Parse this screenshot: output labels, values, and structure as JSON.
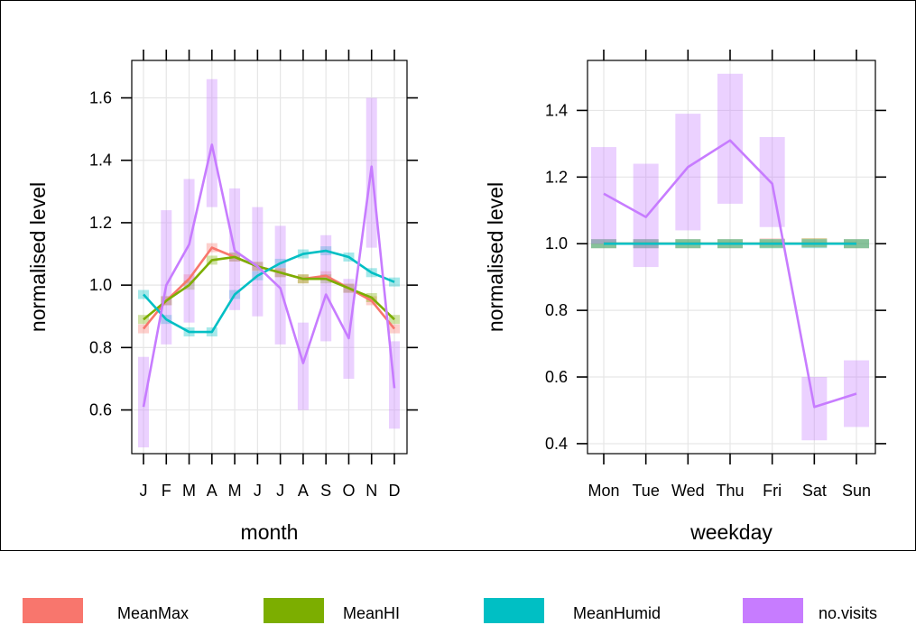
{
  "chart_data": [
    {
      "type": "line",
      "xlabel": "month",
      "ylabel": "normalised level",
      "categories": [
        "J",
        "F",
        "M",
        "A",
        "M",
        "J",
        "J",
        "A",
        "S",
        "O",
        "N",
        "D"
      ],
      "ylim": [
        0.46,
        1.72
      ],
      "yticks": [
        0.6,
        0.8,
        1.0,
        1.2,
        1.4,
        1.6
      ],
      "ytick_labels": [
        "0.6",
        "0.8",
        "1.0",
        "1.2",
        "1.4",
        "1.6"
      ],
      "grid": true,
      "series": [
        {
          "name": "MeanMax",
          "color": "#F8766D",
          "values": [
            0.86,
            0.95,
            1.02,
            1.12,
            1.09,
            1.06,
            1.04,
            1.02,
            1.03,
            0.99,
            0.95,
            0.86
          ],
          "lower": [
            0.85,
            0.94,
            1.01,
            1.11,
            1.08,
            1.05,
            1.03,
            1.01,
            1.02,
            0.98,
            0.94,
            0.85
          ],
          "upper": [
            0.87,
            0.96,
            1.03,
            1.13,
            1.1,
            1.07,
            1.05,
            1.03,
            1.04,
            1.0,
            0.96,
            0.87
          ]
        },
        {
          "name": "MeanHI",
          "color": "#7CAE00",
          "values": [
            0.89,
            0.95,
            1.0,
            1.08,
            1.09,
            1.06,
            1.04,
            1.02,
            1.02,
            0.99,
            0.96,
            0.89
          ],
          "lower": [
            0.88,
            0.94,
            0.99,
            1.07,
            1.08,
            1.05,
            1.03,
            1.01,
            1.01,
            0.98,
            0.95,
            0.88
          ],
          "upper": [
            0.9,
            0.96,
            1.01,
            1.09,
            1.1,
            1.07,
            1.05,
            1.03,
            1.03,
            1.0,
            0.97,
            0.9
          ]
        },
        {
          "name": "MeanHumid",
          "color": "#00BFC4",
          "values": [
            0.97,
            0.89,
            0.85,
            0.85,
            0.97,
            1.03,
            1.07,
            1.1,
            1.11,
            1.09,
            1.04,
            1.01
          ],
          "lower": [
            0.96,
            0.88,
            0.84,
            0.84,
            0.96,
            1.02,
            1.06,
            1.09,
            1.1,
            1.08,
            1.03,
            1.0
          ],
          "upper": [
            0.98,
            0.9,
            0.86,
            0.86,
            0.98,
            1.04,
            1.08,
            1.11,
            1.12,
            1.1,
            1.05,
            1.02
          ]
        },
        {
          "name": "no.visits",
          "color": "#C77CFF",
          "values": [
            0.61,
            1.0,
            1.13,
            1.45,
            1.11,
            1.06,
            0.99,
            0.75,
            0.97,
            0.83,
            1.38,
            0.67
          ],
          "lower": [
            0.48,
            0.81,
            0.88,
            1.25,
            0.92,
            0.9,
            0.81,
            0.6,
            0.82,
            0.7,
            1.12,
            0.54
          ],
          "upper": [
            0.77,
            1.24,
            1.34,
            1.66,
            1.31,
            1.25,
            1.19,
            0.88,
            1.16,
            1.02,
            1.6,
            0.82
          ]
        }
      ]
    },
    {
      "type": "line",
      "xlabel": "weekday",
      "ylabel": "normalised level",
      "categories": [
        "Mon",
        "Tue",
        "Wed",
        "Thu",
        "Fri",
        "Sat",
        "Sun"
      ],
      "ylim": [
        0.37,
        1.55
      ],
      "yticks": [
        0.4,
        0.6,
        0.8,
        1.0,
        1.2,
        1.4
      ],
      "ytick_labels": [
        "0.4",
        "0.6",
        "0.8",
        "1.0",
        "1.2",
        "1.4"
      ],
      "grid": true,
      "series": [
        {
          "name": "MeanMax",
          "color": "#F8766D",
          "values": [
            1.0,
            1.0,
            1.0,
            1.0,
            1.0,
            1.0,
            1.0
          ],
          "lower": [
            0.995,
            0.995,
            0.995,
            0.995,
            0.995,
            0.995,
            0.995
          ],
          "upper": [
            1.005,
            1.005,
            1.005,
            1.005,
            1.01,
            1.01,
            1.005
          ]
        },
        {
          "name": "MeanHI",
          "color": "#7CAE00",
          "values": [
            1.0,
            1.0,
            1.0,
            1.0,
            1.0,
            1.0,
            1.0
          ],
          "lower": [
            0.995,
            0.995,
            0.995,
            0.995,
            0.995,
            0.995,
            0.995
          ],
          "upper": [
            1.005,
            1.005,
            1.005,
            1.005,
            1.005,
            1.01,
            1.005
          ]
        },
        {
          "name": "MeanHumid",
          "color": "#00BFC4",
          "values": [
            1.0,
            1.0,
            1.0,
            1.0,
            1.0,
            1.0,
            1.0
          ],
          "lower": [
            0.99,
            0.99,
            0.99,
            0.99,
            0.99,
            0.99,
            0.99
          ],
          "upper": [
            1.01,
            1.01,
            1.01,
            1.01,
            1.01,
            1.01,
            1.01
          ]
        },
        {
          "name": "no.visits",
          "color": "#C77CFF",
          "values": [
            1.15,
            1.08,
            1.23,
            1.31,
            1.18,
            0.51,
            0.55
          ],
          "lower": [
            1.0,
            0.93,
            1.04,
            1.12,
            1.05,
            0.41,
            0.45
          ],
          "upper": [
            1.29,
            1.24,
            1.39,
            1.51,
            1.32,
            0.6,
            0.65
          ]
        }
      ]
    }
  ],
  "legend": {
    "placement": "bottom",
    "items": [
      {
        "name": "MeanMax",
        "color": "#F8766D"
      },
      {
        "name": "MeanHI",
        "color": "#7CAE00"
      },
      {
        "name": "MeanHumid",
        "color": "#00BFC4"
      },
      {
        "name": "no.visits",
        "color": "#C77CFF"
      }
    ]
  }
}
